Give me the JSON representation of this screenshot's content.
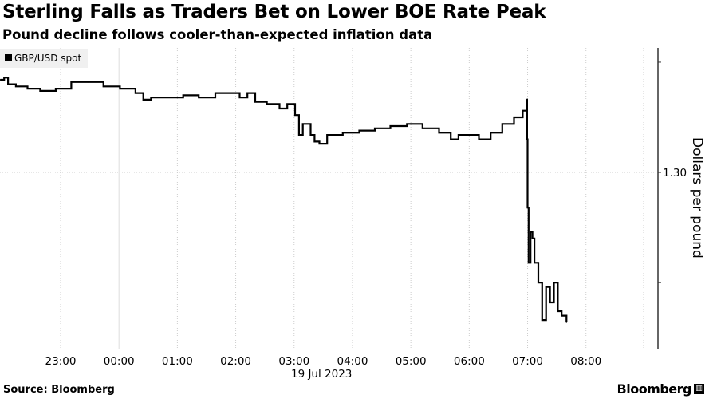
{
  "title": "Sterling Falls as Traders Bet on Lower BOE Rate Peak",
  "subtitle": "Pound decline follows cooler-than-expected inflation data",
  "source": "Source: Bloomberg",
  "logo": "Bloomberg",
  "chart_data": {
    "type": "line",
    "title": "Sterling Falls as Traders Bet on Lower BOE Rate Peak",
    "legend": [
      "GBP/USD spot"
    ],
    "legend_position": "top-left",
    "xlabel": "19 Jul 2023",
    "ylabel": "Dollars per pound",
    "x_unit": "minutes after 22:00 (18 Jul)",
    "xlim": [
      -2.3,
      674
    ],
    "ylim": [
      1.292,
      1.30565
    ],
    "x_ticks": [
      {
        "m": 60,
        "label": "23:00"
      },
      {
        "m": 120,
        "label": "00:00"
      },
      {
        "m": 180,
        "label": "01:00"
      },
      {
        "m": 240,
        "label": "02:00"
      },
      {
        "m": 300,
        "label": "03:00"
      },
      {
        "m": 360,
        "label": "04:00"
      },
      {
        "m": 420,
        "label": "05:00"
      },
      {
        "m": 480,
        "label": "06:00"
      },
      {
        "m": 540,
        "label": "07:00"
      },
      {
        "m": 600,
        "label": "08:00"
      }
    ],
    "y_ticks": [
      {
        "v": 1.305,
        "label": ""
      },
      {
        "v": 1.3,
        "label": "1.30"
      },
      {
        "v": 1.295,
        "label": ""
      }
    ],
    "grid": true,
    "series": [
      {
        "name": "GBP/USD spot",
        "color": "#000000",
        "points": [
          [
            -2,
            1.3042
          ],
          [
            2,
            1.3043
          ],
          [
            6,
            1.304
          ],
          [
            14,
            1.3039
          ],
          [
            26,
            1.3038
          ],
          [
            39,
            1.3037
          ],
          [
            55,
            1.3038
          ],
          [
            71,
            1.3041
          ],
          [
            88,
            1.3041
          ],
          [
            104,
            1.3039
          ],
          [
            121,
            1.3038
          ],
          [
            137,
            1.3036
          ],
          [
            145,
            1.3033
          ],
          [
            153,
            1.3034
          ],
          [
            170,
            1.3034
          ],
          [
            186,
            1.3035
          ],
          [
            202,
            1.3034
          ],
          [
            219,
            1.3036
          ],
          [
            235,
            1.3036
          ],
          [
            244,
            1.3034
          ],
          [
            252,
            1.3036
          ],
          [
            260,
            1.3032
          ],
          [
            272,
            1.3031
          ],
          [
            285,
            1.3029
          ],
          [
            293,
            1.3031
          ],
          [
            301,
            1.3026
          ],
          [
            305,
            1.3017
          ],
          [
            309,
            1.3022
          ],
          [
            317,
            1.3017
          ],
          [
            321,
            1.3014
          ],
          [
            326,
            1.3013
          ],
          [
            334,
            1.3017
          ],
          [
            350,
            1.3018
          ],
          [
            367,
            1.3019
          ],
          [
            383,
            1.302
          ],
          [
            399,
            1.3021
          ],
          [
            416,
            1.3022
          ],
          [
            432,
            1.302
          ],
          [
            449,
            1.3018
          ],
          [
            461,
            1.3015
          ],
          [
            469,
            1.3017
          ],
          [
            481,
            1.3017
          ],
          [
            490,
            1.3015
          ],
          [
            502,
            1.3018
          ],
          [
            514,
            1.3022
          ],
          [
            526,
            1.3025
          ],
          [
            535,
            1.3028
          ],
          [
            539,
            1.3033
          ],
          [
            539.5,
            1.3015
          ],
          [
            540,
            1.2984
          ],
          [
            541,
            1.2959
          ],
          [
            543,
            1.2973
          ],
          [
            545,
            1.297
          ],
          [
            547,
            1.2959
          ],
          [
            551,
            1.295
          ],
          [
            555,
            1.2933
          ],
          [
            559,
            1.2948
          ],
          [
            563,
            1.2941
          ],
          [
            567,
            1.295
          ],
          [
            571,
            1.2937
          ],
          [
            575,
            1.2935
          ],
          [
            580,
            1.2932
          ]
        ]
      }
    ]
  }
}
